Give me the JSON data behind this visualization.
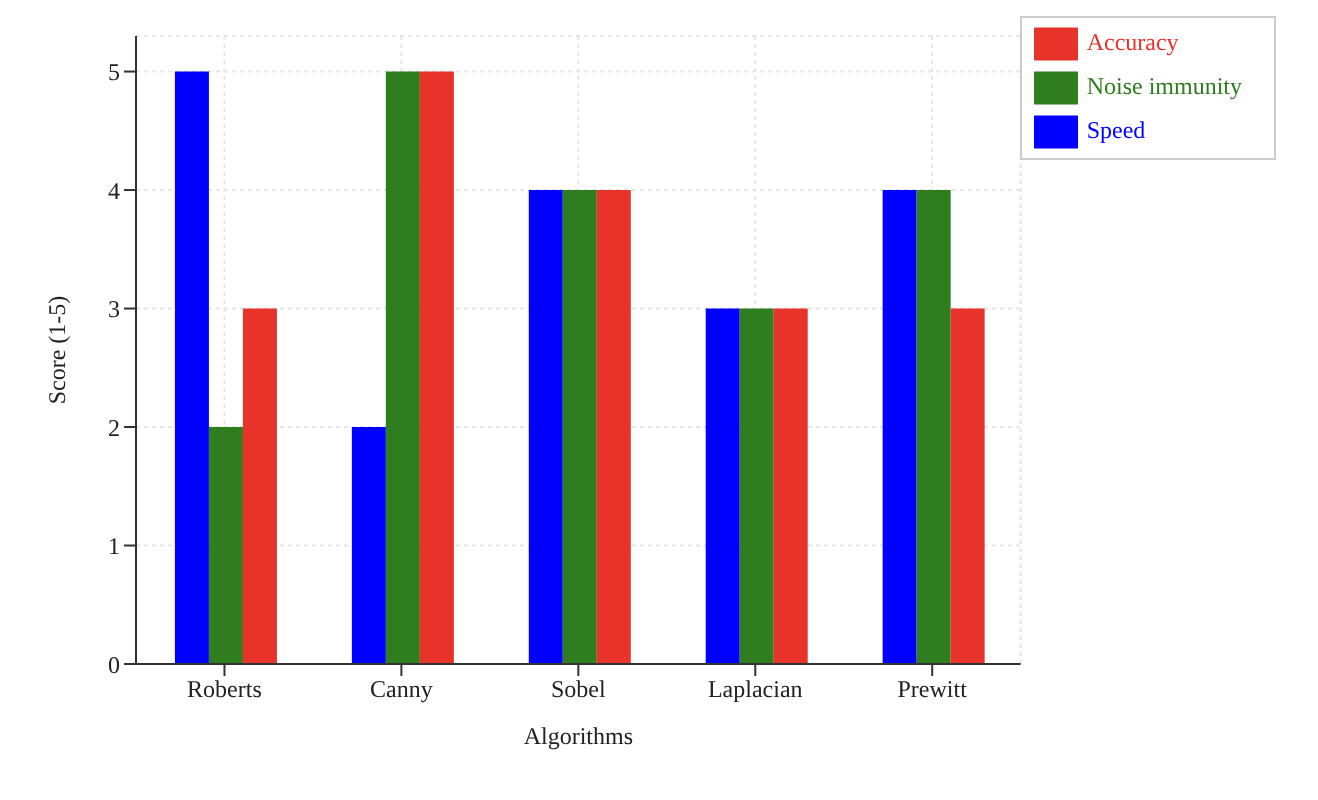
{
  "chart_data": {
    "type": "bar",
    "xlabel": "Algorithms",
    "ylabel": "Score (1-5)",
    "categories": [
      "Roberts",
      "Canny",
      "Sobel",
      "Laplacian",
      "Prewitt"
    ],
    "series": [
      {
        "name": "Speed",
        "color": "#0000ff",
        "values": [
          5,
          2,
          4,
          3,
          4
        ]
      },
      {
        "name": "Noise immunity",
        "color": "#2e7d1e",
        "values": [
          2,
          5,
          4,
          3,
          4
        ]
      },
      {
        "name": "Accuracy",
        "color": "#e8332a",
        "values": [
          3,
          5,
          4,
          3,
          3
        ]
      }
    ],
    "ylim": [
      0,
      5.3
    ],
    "yticks": [
      0,
      1,
      2,
      3,
      4,
      5
    ],
    "grid": true,
    "legend": "top right"
  }
}
